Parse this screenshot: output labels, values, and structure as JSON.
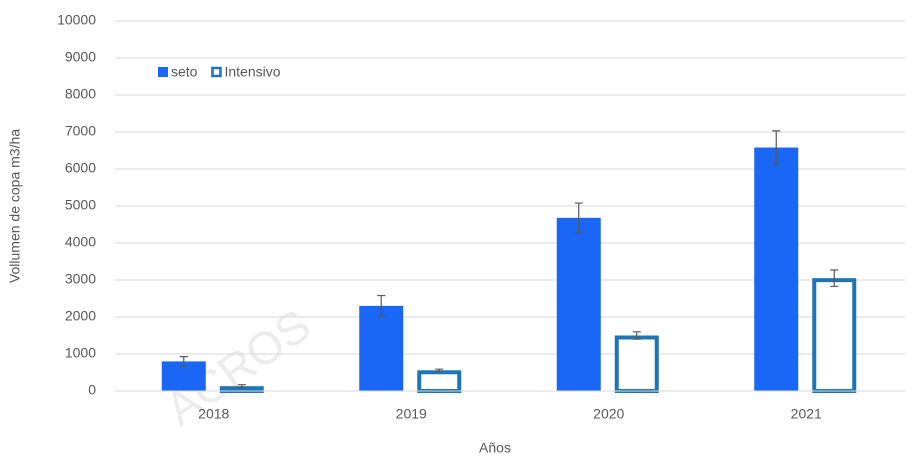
{
  "chart_data": {
    "type": "bar",
    "x_label": "Años",
    "y_label": "Vollumen de copa m3/ha",
    "categories": [
      "2018",
      "2019",
      "2020",
      "2021"
    ],
    "series": [
      {
        "name": "seto",
        "color": "#1a66f5",
        "values": [
          800,
          2300,
          4680,
          6580
        ],
        "errors": [
          130,
          280,
          400,
          450
        ]
      },
      {
        "name": "Intensivo",
        "color": "#1f74b8",
        "values": [
          130,
          560,
          1500,
          3050
        ],
        "errors": [
          40,
          30,
          100,
          220
        ]
      }
    ],
    "ylim": [
      0,
      10000
    ],
    "yticks": [
      0,
      1000,
      2000,
      3000,
      4000,
      5000,
      6000,
      7000,
      8000,
      9000,
      10000
    ],
    "grid": true,
    "legend": "top-left",
    "watermark": "ACROS"
  }
}
